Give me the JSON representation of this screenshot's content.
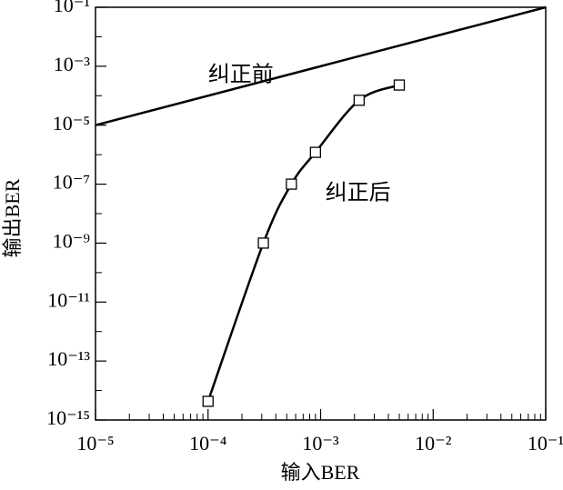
{
  "chart_data": {
    "type": "line",
    "xlabel": "输入BER",
    "ylabel": "输出BER",
    "xscale": "log",
    "yscale": "log",
    "xlim": [
      1e-05,
      0.1
    ],
    "ylim": [
      1e-15,
      0.1
    ],
    "xticks": [
      {
        "value": 1e-05,
        "label": "10⁻⁵"
      },
      {
        "value": 0.0001,
        "label": "10⁻⁴"
      },
      {
        "value": 0.001,
        "label": "10⁻³"
      },
      {
        "value": 0.01,
        "label": "10⁻²"
      },
      {
        "value": 0.1,
        "label": "10⁻¹"
      }
    ],
    "yticks": [
      {
        "value": 1e-15,
        "label": "10⁻¹⁵"
      },
      {
        "value": 1e-13,
        "label": "10⁻¹³"
      },
      {
        "value": 1e-11,
        "label": "10⁻¹¹"
      },
      {
        "value": 1e-09,
        "label": "10⁻⁹"
      },
      {
        "value": 1e-07,
        "label": "10⁻⁷"
      },
      {
        "value": 1e-05,
        "label": "10⁻⁵"
      },
      {
        "value": 0.001,
        "label": "10⁻³"
      },
      {
        "value": 0.1,
        "label": "10⁻¹"
      }
    ],
    "xminorticks": [
      2e-05,
      3e-05,
      4e-05,
      5e-05,
      6e-05,
      7e-05,
      8e-05,
      9e-05,
      0.0002,
      0.0003,
      0.0004,
      0.0005,
      0.0006,
      0.0007,
      0.0008,
      0.0009,
      0.002,
      0.003,
      0.004,
      0.005,
      0.006,
      0.007,
      0.008,
      0.009,
      0.02,
      0.03,
      0.04,
      0.05,
      0.06,
      0.07,
      0.08,
      0.09
    ],
    "yminorticks": [
      1e-14,
      1e-12,
      1e-10,
      1e-08,
      1e-06,
      0.0001,
      0.01
    ],
    "series": [
      {
        "name": "纠正前",
        "color": "#000000",
        "x": [
          1e-05,
          0.1
        ],
        "values": [
          1e-05,
          0.1
        ],
        "markers": false
      },
      {
        "name": "纠正后",
        "color": "#000000",
        "x": [
          0.0001,
          0.00031,
          0.00055,
          0.0009,
          0.0022,
          0.005
        ],
        "values": [
          4.3e-15,
          1e-09,
          1e-07,
          1.2e-06,
          7e-05,
          0.00023
        ],
        "markers": true
      }
    ],
    "annotations": [
      {
        "text": "纠正前",
        "x": 0.0001,
        "y": 0.0005
      },
      {
        "text": "纠正后",
        "x": 0.0011,
        "y": 5e-08
      }
    ]
  }
}
